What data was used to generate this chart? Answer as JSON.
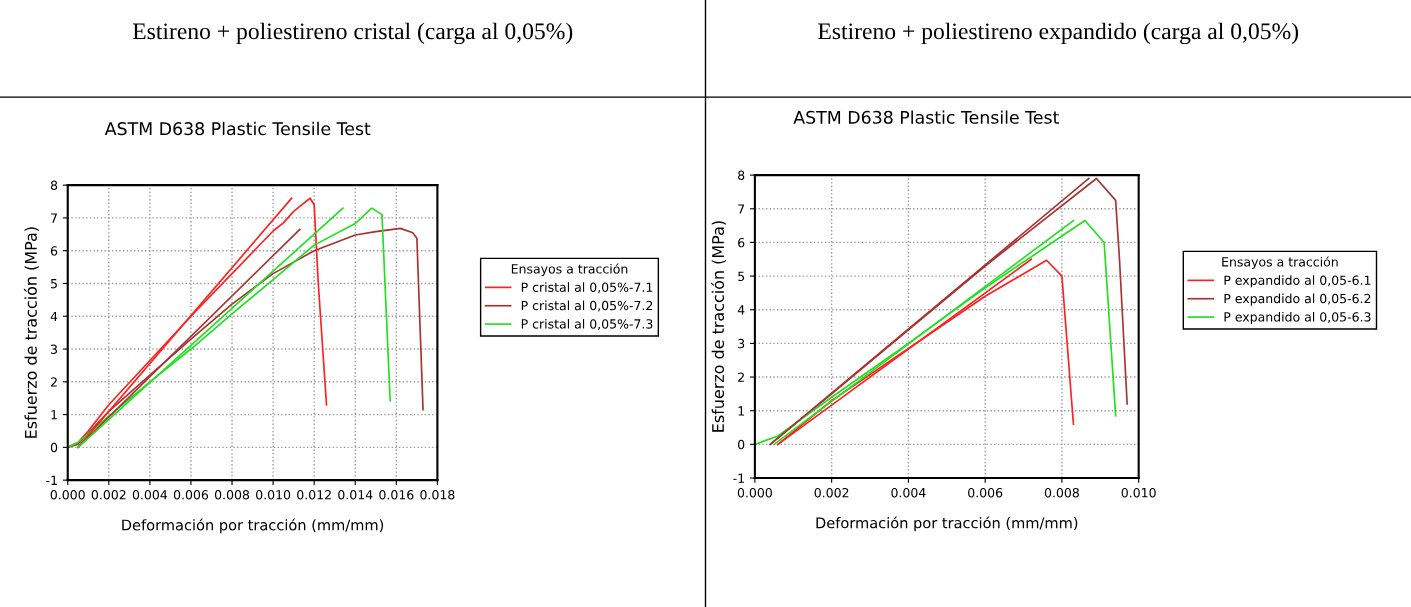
{
  "chart_data": [
    {
      "type": "line",
      "title": "Estireno + poliestireno cristal (carga al 0,05%)",
      "subtitle": "ASTM D638 Plastic Tensile Test",
      "xlabel": "Deformación por tracción (mm/mm)",
      "ylabel": "Esfuerzo de tracción (MPa)",
      "legend_title": "Ensayos a tracción",
      "legend": "right",
      "grid": true,
      "line_style": "solid",
      "xlim": [
        0,
        0.018
      ],
      "ylim": [
        -1,
        8
      ],
      "xticks": [
        {
          "value": 0,
          "label": "0.000"
        },
        {
          "value": 0.002,
          "label": "0.002"
        },
        {
          "value": 0.004,
          "label": "0.004"
        },
        {
          "value": 0.006,
          "label": "0.006"
        },
        {
          "value": 0.008,
          "label": "0.008"
        },
        {
          "value": 0.01,
          "label": "0.010"
        },
        {
          "value": 0.012,
          "label": "0.012"
        },
        {
          "value": 0.014,
          "label": "0.014"
        },
        {
          "value": 0.016,
          "label": "0.016"
        },
        {
          "value": 0.018,
          "label": "0.018"
        }
      ],
      "yticks": [
        -1,
        0,
        1,
        2,
        3,
        4,
        5,
        6,
        7,
        8
      ],
      "series": [
        {
          "name": "P cristal al 0,05%-7.1",
          "color": "#ff2020",
          "x": [
            0,
            0.0005,
            0.001,
            0.002,
            0.004,
            0.006,
            0.008,
            0.01,
            0.0105,
            0.011,
            0.0113,
            0.0118,
            0.012,
            0.0122,
            0.0126
          ],
          "values": [
            0,
            0.15,
            0.5,
            1.3,
            2.65,
            4.0,
            5.3,
            6.6,
            6.85,
            7.2,
            7.35,
            7.6,
            7.4,
            5.0,
            1.3
          ]
        },
        {
          "name": "P cristal al 0,05%-7.2",
          "color": "#a83232",
          "x": [
            0,
            0.0005,
            0.002,
            0.004,
            0.006,
            0.008,
            0.01,
            0.012,
            0.014,
            0.015,
            0.0162,
            0.0168,
            0.017,
            0.0173
          ],
          "values": [
            0,
            0.1,
            1.1,
            2.2,
            3.3,
            4.37,
            5.3,
            6.0,
            6.48,
            6.58,
            6.68,
            6.55,
            6.38,
            1.15
          ]
        },
        {
          "name": "P cristal al 0,05%-7.3",
          "color": "#20e020",
          "x": [
            0,
            0.0005,
            0.002,
            0.004,
            0.006,
            0.008,
            0.01,
            0.012,
            0.014,
            0.0148,
            0.0153,
            0.0157
          ],
          "values": [
            0,
            0.15,
            0.95,
            2.0,
            3.0,
            4.07,
            5.12,
            6.17,
            6.83,
            7.3,
            7.1,
            1.42
          ]
        },
        {
          "color": "#ff2020",
          "x": [
            0.0005,
            0.0109
          ],
          "values": [
            0,
            7.6
          ]
        },
        {
          "color": "#a83232",
          "x": [
            0.0005,
            0.0113
          ],
          "values": [
            0,
            6.65
          ]
        },
        {
          "color": "#20e020",
          "x": [
            0.0005,
            0.0134
          ],
          "values": [
            0,
            7.3
          ]
        }
      ]
    },
    {
      "type": "line",
      "title": "Estireno + poliestireno expandido (carga al 0,05%)",
      "subtitle": "ASTM D638 Plastic Tensile Test",
      "xlabel": "Deformación por tracción (mm/mm)",
      "ylabel": "Esfuerzo de tracción (MPa)",
      "legend_title": "Ensayos a tracción",
      "legend": "right",
      "grid": true,
      "line_style": "solid",
      "xlim": [
        0,
        0.01
      ],
      "ylim": [
        -1,
        8
      ],
      "xticks": [
        {
          "value": 0,
          "label": "0.000"
        },
        {
          "value": 0.002,
          "label": "0.002"
        },
        {
          "value": 0.004,
          "label": "0.004"
        },
        {
          "value": 0.006,
          "label": "0.006"
        },
        {
          "value": 0.008,
          "label": "0.008"
        },
        {
          "value": 0.01,
          "label": "0.010"
        }
      ],
      "yticks": [
        -1,
        0,
        1,
        2,
        3,
        4,
        5,
        6,
        7,
        8
      ],
      "series": [
        {
          "name": "P expandido al 0,05-6.1",
          "color": "#ff2020",
          "x": [
            0.0006,
            0.002,
            0.004,
            0.006,
            0.0076,
            0.008,
            0.0083
          ],
          "values": [
            0,
            1.3,
            2.85,
            4.4,
            5.47,
            5.0,
            0.6
          ]
        },
        {
          "name": "P expandido al 0,05-6.2",
          "color": "#a83232",
          "x": [
            0.0004,
            0.002,
            0.004,
            0.006,
            0.0089,
            0.0094,
            0.0095,
            0.0097
          ],
          "values": [
            0,
            1.5,
            3.4,
            5.3,
            7.9,
            7.25,
            5.5,
            1.2
          ]
        },
        {
          "name": "P expandido al 0,05-6.3",
          "color": "#20e020",
          "x": [
            0,
            0.0006,
            0.002,
            0.004,
            0.006,
            0.0086,
            0.0091,
            0.0094
          ],
          "values": [
            0,
            0.25,
            1.4,
            3.0,
            4.65,
            6.65,
            6.0,
            0.85
          ]
        },
        {
          "color": "#ff2020",
          "x": [
            0.0006,
            0.0072
          ],
          "values": [
            0,
            5.5
          ]
        },
        {
          "color": "#a83232",
          "x": [
            0.0004,
            0.0087
          ],
          "values": [
            0,
            7.9
          ]
        },
        {
          "color": "#20e020",
          "x": [
            0.0005,
            0.0083
          ],
          "values": [
            0,
            6.65
          ]
        }
      ]
    }
  ]
}
